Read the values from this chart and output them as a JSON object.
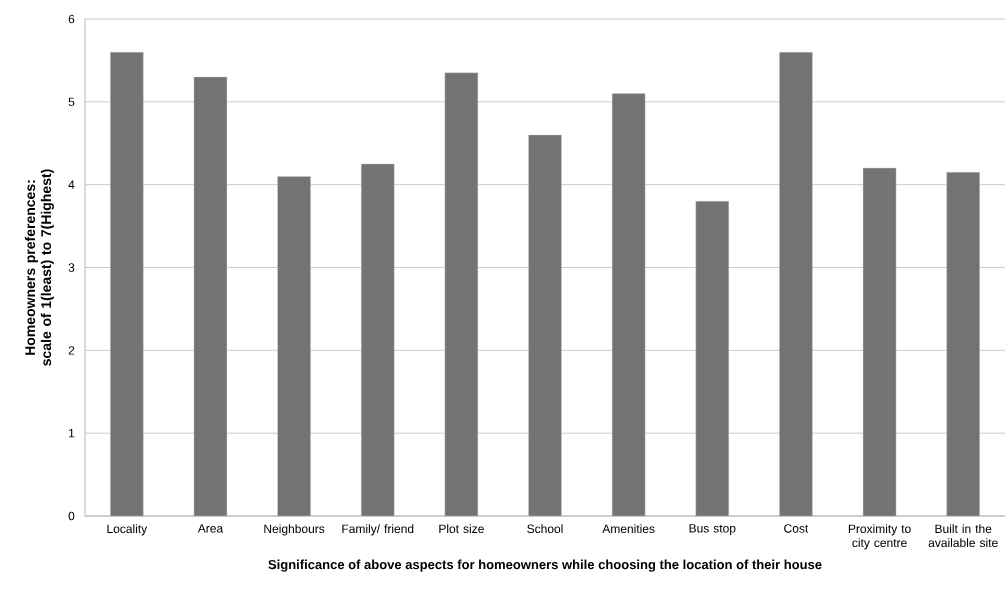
{
  "chart_data": {
    "type": "bar",
    "xlabel": "Significance of above aspects for homeowners while choosing the location of their house",
    "ylabel": "Homeowners preferences: scale of 1(least) to 7(Highest)",
    "categories": [
      "Locality",
      "Area",
      "Neighbours",
      "Family/ friend",
      "Plot size",
      "School",
      "Amenities",
      "Bus stop",
      "Cost",
      "Proximity to city centre",
      "Built in the available site"
    ],
    "values": [
      5.6,
      5.3,
      4.1,
      4.25,
      5.35,
      4.6,
      5.1,
      3.8,
      5.6,
      4.2,
      4.15
    ],
    "color": "#737373",
    "ylim": [
      0,
      6
    ],
    "yticks": [
      0,
      1,
      2,
      3,
      4,
      5,
      6
    ],
    "grid": "y"
  }
}
